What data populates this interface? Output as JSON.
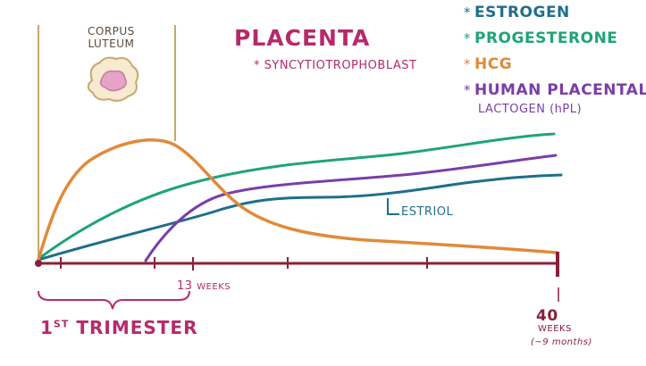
{
  "corpus_luteum": {
    "line1": "CORPUS",
    "line2": "LUTEUM"
  },
  "placenta": {
    "title": "PLACENTA",
    "note": "* SYNCYTIOTROPHOBLAST"
  },
  "legend": [
    {
      "star": "*",
      "label": "ESTROGEN",
      "color": "#1f6e8c"
    },
    {
      "star": "*",
      "label": "PROGESTERONE",
      "color": "#1fa37a"
    },
    {
      "star": "*",
      "label": "HCG",
      "color": "#e08a3a"
    },
    {
      "star": "*",
      "label": "HUMAN PLACENTAL",
      "color": "#7a3ea8"
    }
  ],
  "legend_sub": "LACTOGEN (hPL)",
  "curve_labels": {
    "estriol": "ESTRIOL"
  },
  "axis": {
    "week13": "13",
    "week13_unit": "WEEKS",
    "trimester_prefix": "1",
    "trimester_sup": "ST",
    "trimester_word": "TRIMESTER",
    "week40": "40",
    "week40_unit": "WEEKS",
    "week40_note": "(~9 months)"
  },
  "colors": {
    "axis": "#8a1f3a",
    "estrogen": "#1f6e8c",
    "progesterone": "#1fa37a",
    "hcg": "#e08a3a",
    "hpl": "#7a3ea8",
    "corpus_luteum_line": "#c4a96a"
  }
}
